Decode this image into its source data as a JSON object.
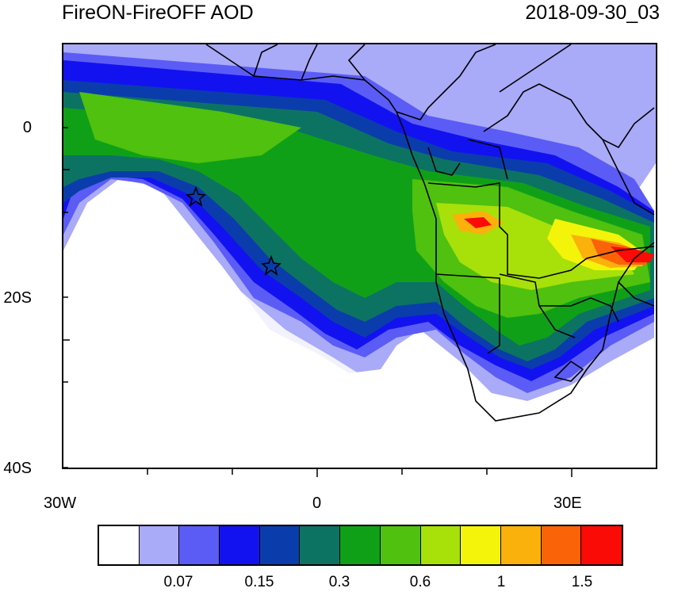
{
  "title": "FireON-FireOFF AOD",
  "timestamp": "2018-09-30_03",
  "axes": {
    "y_labels": [
      "0",
      "20S",
      "40S"
    ],
    "x_labels": [
      "30W",
      "0",
      "30E"
    ]
  },
  "colorbar": {
    "colors": [
      "#ffffff",
      "#a9aaf8",
      "#5b5cf5",
      "#1212f0",
      "#0a3dab",
      "#0c7363",
      "#10a018",
      "#4fc10e",
      "#a8e00a",
      "#f3f40a",
      "#fbb10c",
      "#fb6308",
      "#fb0b06"
    ],
    "labels": [
      "0.07",
      "0.15",
      "0.3",
      "0.6",
      "1",
      "1.5"
    ]
  },
  "markers": [
    "star",
    "star"
  ]
}
